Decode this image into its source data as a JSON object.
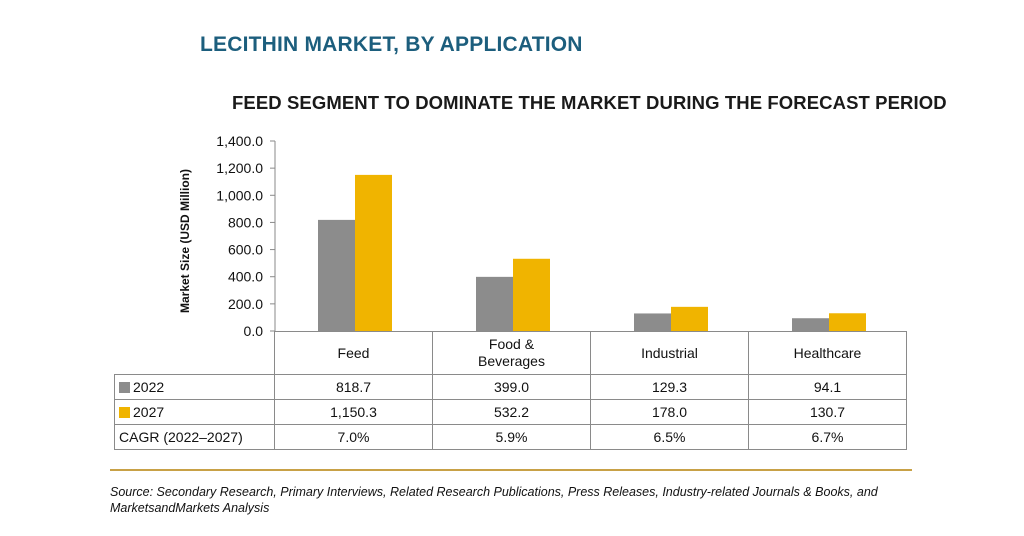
{
  "chart_data": {
    "type": "bar",
    "title": "LECITHIN MARKET, BY APPLICATION",
    "subtitle": "FEED SEGMENT TO DOMINATE THE MARKET DURING THE FORECAST PERIOD",
    "ylabel": "Market Size (USD Million)",
    "xlabel": "",
    "ylim": [
      0,
      1400
    ],
    "yticks": [
      "0.0",
      "200.0",
      "400.0",
      "600.0",
      "800.0",
      "1,000.0",
      "1,200.0",
      "1,400.0"
    ],
    "categories": [
      "Feed",
      "Food & Beverages",
      "Industrial",
      "Healthcare"
    ],
    "category_labels": [
      [
        "Feed"
      ],
      [
        "Food &",
        "Beverages"
      ],
      [
        "Industrial"
      ],
      [
        "Healthcare"
      ]
    ],
    "grid": false,
    "series": [
      {
        "name": "2022",
        "color": "#8c8c8c",
        "values": [
          818.7,
          399.0,
          129.3,
          94.1
        ],
        "labels": [
          "818.7",
          "399.0",
          "129.3",
          "94.1"
        ]
      },
      {
        "name": "2027",
        "color": "#f0b400",
        "values": [
          1150.3,
          532.2,
          178.0,
          130.7
        ],
        "labels": [
          "1,150.3",
          "532.2",
          "178.0",
          "130.7"
        ]
      }
    ],
    "cagr": {
      "label": "CAGR (2022–2027)",
      "values": [
        "7.0%",
        "5.9%",
        "6.5%",
        "6.7%"
      ]
    }
  },
  "source": "Source: Secondary Research, Primary Interviews, Related Research Publications, Press Releases, Industry-related Journals & Books, and MarketsandMarkets Analysis"
}
